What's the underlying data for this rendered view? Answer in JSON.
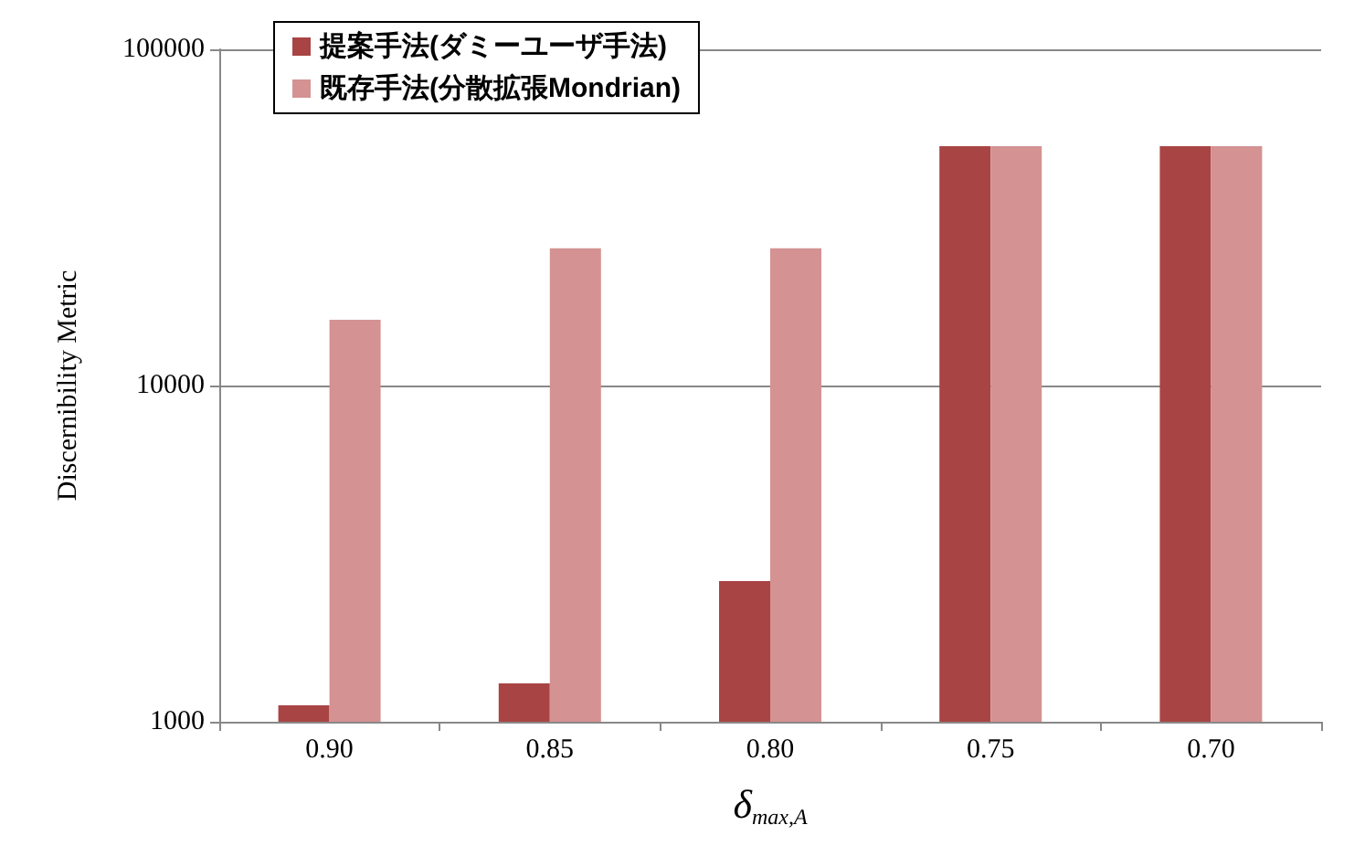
{
  "chart_data": {
    "type": "bar",
    "categories": [
      "0.90",
      "0.85",
      "0.80",
      "0.75",
      "0.70"
    ],
    "series": [
      {
        "name": "提案手法(ダミーユーザ手法)",
        "color": "#a94444",
        "values": [
          1120,
          1300,
          2620,
          51500,
          51500
        ]
      },
      {
        "name": "既存手法(分散拡張Mondrian)",
        "color": "#d49292",
        "values": [
          15700,
          25600,
          25600,
          51500,
          51500
        ]
      }
    ],
    "xlabel": "δ$_{max,A}$",
    "ylabel": "Discernibility Metric",
    "log": "y",
    "ylim": [
      1000,
      100000
    ],
    "yticks": [
      1000,
      10000,
      100000
    ],
    "grid": "y",
    "legend": "top left"
  }
}
